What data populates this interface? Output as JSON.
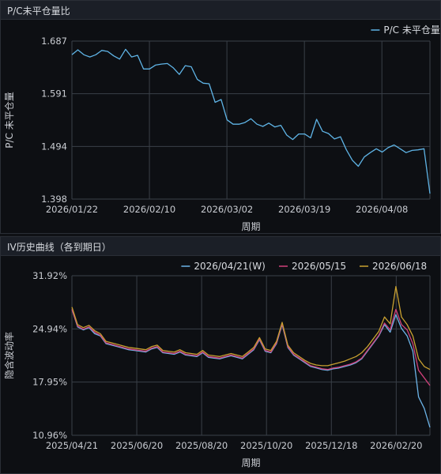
{
  "panels": {
    "top_title": "P/C未平仓量比",
    "bottom_title": "IV历史曲线（各到期日）"
  },
  "colors": {
    "pc_line": "#5fb4e6",
    "s1": "#6cb4e8",
    "s2": "#d0407a",
    "s3": "#c8a030",
    "grid": "#3a4048",
    "text": "#c9ccd2",
    "bg": "#0d0f13"
  },
  "chart_data": [
    {
      "type": "line",
      "title": "P/C未平仓量比",
      "xlabel": "周期",
      "ylabel": "P/C 未平仓量",
      "ylim": [
        1.398,
        1.687
      ],
      "yticks": [
        "1.687",
        "1.591",
        "1.494",
        "1.398"
      ],
      "xticks": [
        "2026/01/22",
        "2026/02/10",
        "2026/03/02",
        "2026/03/19",
        "2026/04/08"
      ],
      "grid": true,
      "legend": "top-right",
      "series": [
        {
          "name": "P/C 未平仓量",
          "values": [
            1.662,
            1.671,
            1.662,
            1.658,
            1.662,
            1.67,
            1.668,
            1.66,
            1.654,
            1.672,
            1.658,
            1.661,
            1.636,
            1.636,
            1.643,
            1.645,
            1.646,
            1.638,
            1.626,
            1.642,
            1.64,
            1.617,
            1.61,
            1.609,
            1.575,
            1.58,
            1.543,
            1.535,
            1.535,
            1.538,
            1.545,
            1.535,
            1.531,
            1.537,
            1.53,
            1.533,
            1.515,
            1.507,
            1.517,
            1.517,
            1.51,
            1.544,
            1.522,
            1.518,
            1.508,
            1.512,
            1.488,
            1.469,
            1.458,
            1.475,
            1.483,
            1.49,
            1.484,
            1.492,
            1.497,
            1.49,
            1.483,
            1.487,
            1.488,
            1.49,
            1.408
          ]
        }
      ]
    },
    {
      "type": "line",
      "title": "IV历史曲线（各到期日）",
      "xlabel": "周期",
      "ylabel": "隐含波动率",
      "ylim": [
        10.96,
        31.92
      ],
      "yticks": [
        "31.92%",
        "24.94%",
        "17.95%",
        "10.96%"
      ],
      "xticks": [
        "2025/04/21",
        "2025/06/20",
        "2025/08/20",
        "2025/10/20",
        "2025/12/18",
        "2026/02/20"
      ],
      "grid": true,
      "legend": "top-right",
      "series": [
        {
          "name": "2026/04/21(W)",
          "values": [
            27.5,
            25.2,
            24.8,
            25.1,
            24.3,
            24.0,
            23.0,
            22.8,
            22.6,
            22.4,
            22.2,
            22.1,
            22.0,
            21.9,
            22.3,
            22.5,
            21.8,
            21.7,
            21.6,
            21.9,
            21.5,
            21.4,
            21.3,
            21.8,
            21.2,
            21.1,
            21.0,
            21.2,
            21.4,
            21.2,
            21.0,
            21.6,
            22.2,
            23.5,
            22.0,
            21.8,
            23.0,
            25.5,
            22.5,
            21.5,
            21.0,
            20.5,
            20.0,
            19.8,
            19.6,
            19.5,
            19.7,
            19.8,
            20.0,
            20.2,
            20.5,
            21.0,
            22.0,
            23.0,
            24.0,
            25.5,
            24.5,
            26.8,
            25.0,
            24.0,
            22.0,
            16.0,
            14.5,
            12.0
          ]
        },
        {
          "name": "2026/05/15",
          "values": [
            27.5,
            25.3,
            24.9,
            25.2,
            24.5,
            24.1,
            23.1,
            22.9,
            22.7,
            22.5,
            22.3,
            22.2,
            22.1,
            22.0,
            22.4,
            22.6,
            21.9,
            21.8,
            21.7,
            22.0,
            21.6,
            21.5,
            21.4,
            21.9,
            21.3,
            21.2,
            21.1,
            21.3,
            21.5,
            21.3,
            21.1,
            21.7,
            22.3,
            23.6,
            22.1,
            21.9,
            23.1,
            25.6,
            22.6,
            21.6,
            21.1,
            20.6,
            20.1,
            19.9,
            19.7,
            19.6,
            19.8,
            19.9,
            20.1,
            20.3,
            20.6,
            21.1,
            22.1,
            23.1,
            24.1,
            25.7,
            24.8,
            27.5,
            25.5,
            24.8,
            23.0,
            19.5,
            18.5,
            17.5
          ]
        },
        {
          "name": "2026/06/18",
          "values": [
            27.8,
            25.5,
            25.1,
            25.4,
            24.7,
            24.3,
            23.3,
            23.1,
            22.9,
            22.7,
            22.5,
            22.4,
            22.3,
            22.2,
            22.6,
            22.8,
            22.1,
            22.0,
            21.9,
            22.2,
            21.8,
            21.7,
            21.6,
            22.1,
            21.5,
            21.4,
            21.3,
            21.5,
            21.7,
            21.5,
            21.3,
            21.9,
            22.5,
            23.8,
            22.3,
            22.1,
            23.3,
            25.8,
            22.8,
            21.8,
            21.3,
            20.8,
            20.4,
            20.2,
            20.1,
            20.1,
            20.3,
            20.5,
            20.7,
            21.0,
            21.3,
            21.8,
            22.6,
            23.6,
            24.6,
            26.5,
            25.6,
            30.5,
            26.5,
            25.5,
            24.0,
            21.0,
            20.0,
            19.6
          ]
        }
      ]
    }
  ]
}
